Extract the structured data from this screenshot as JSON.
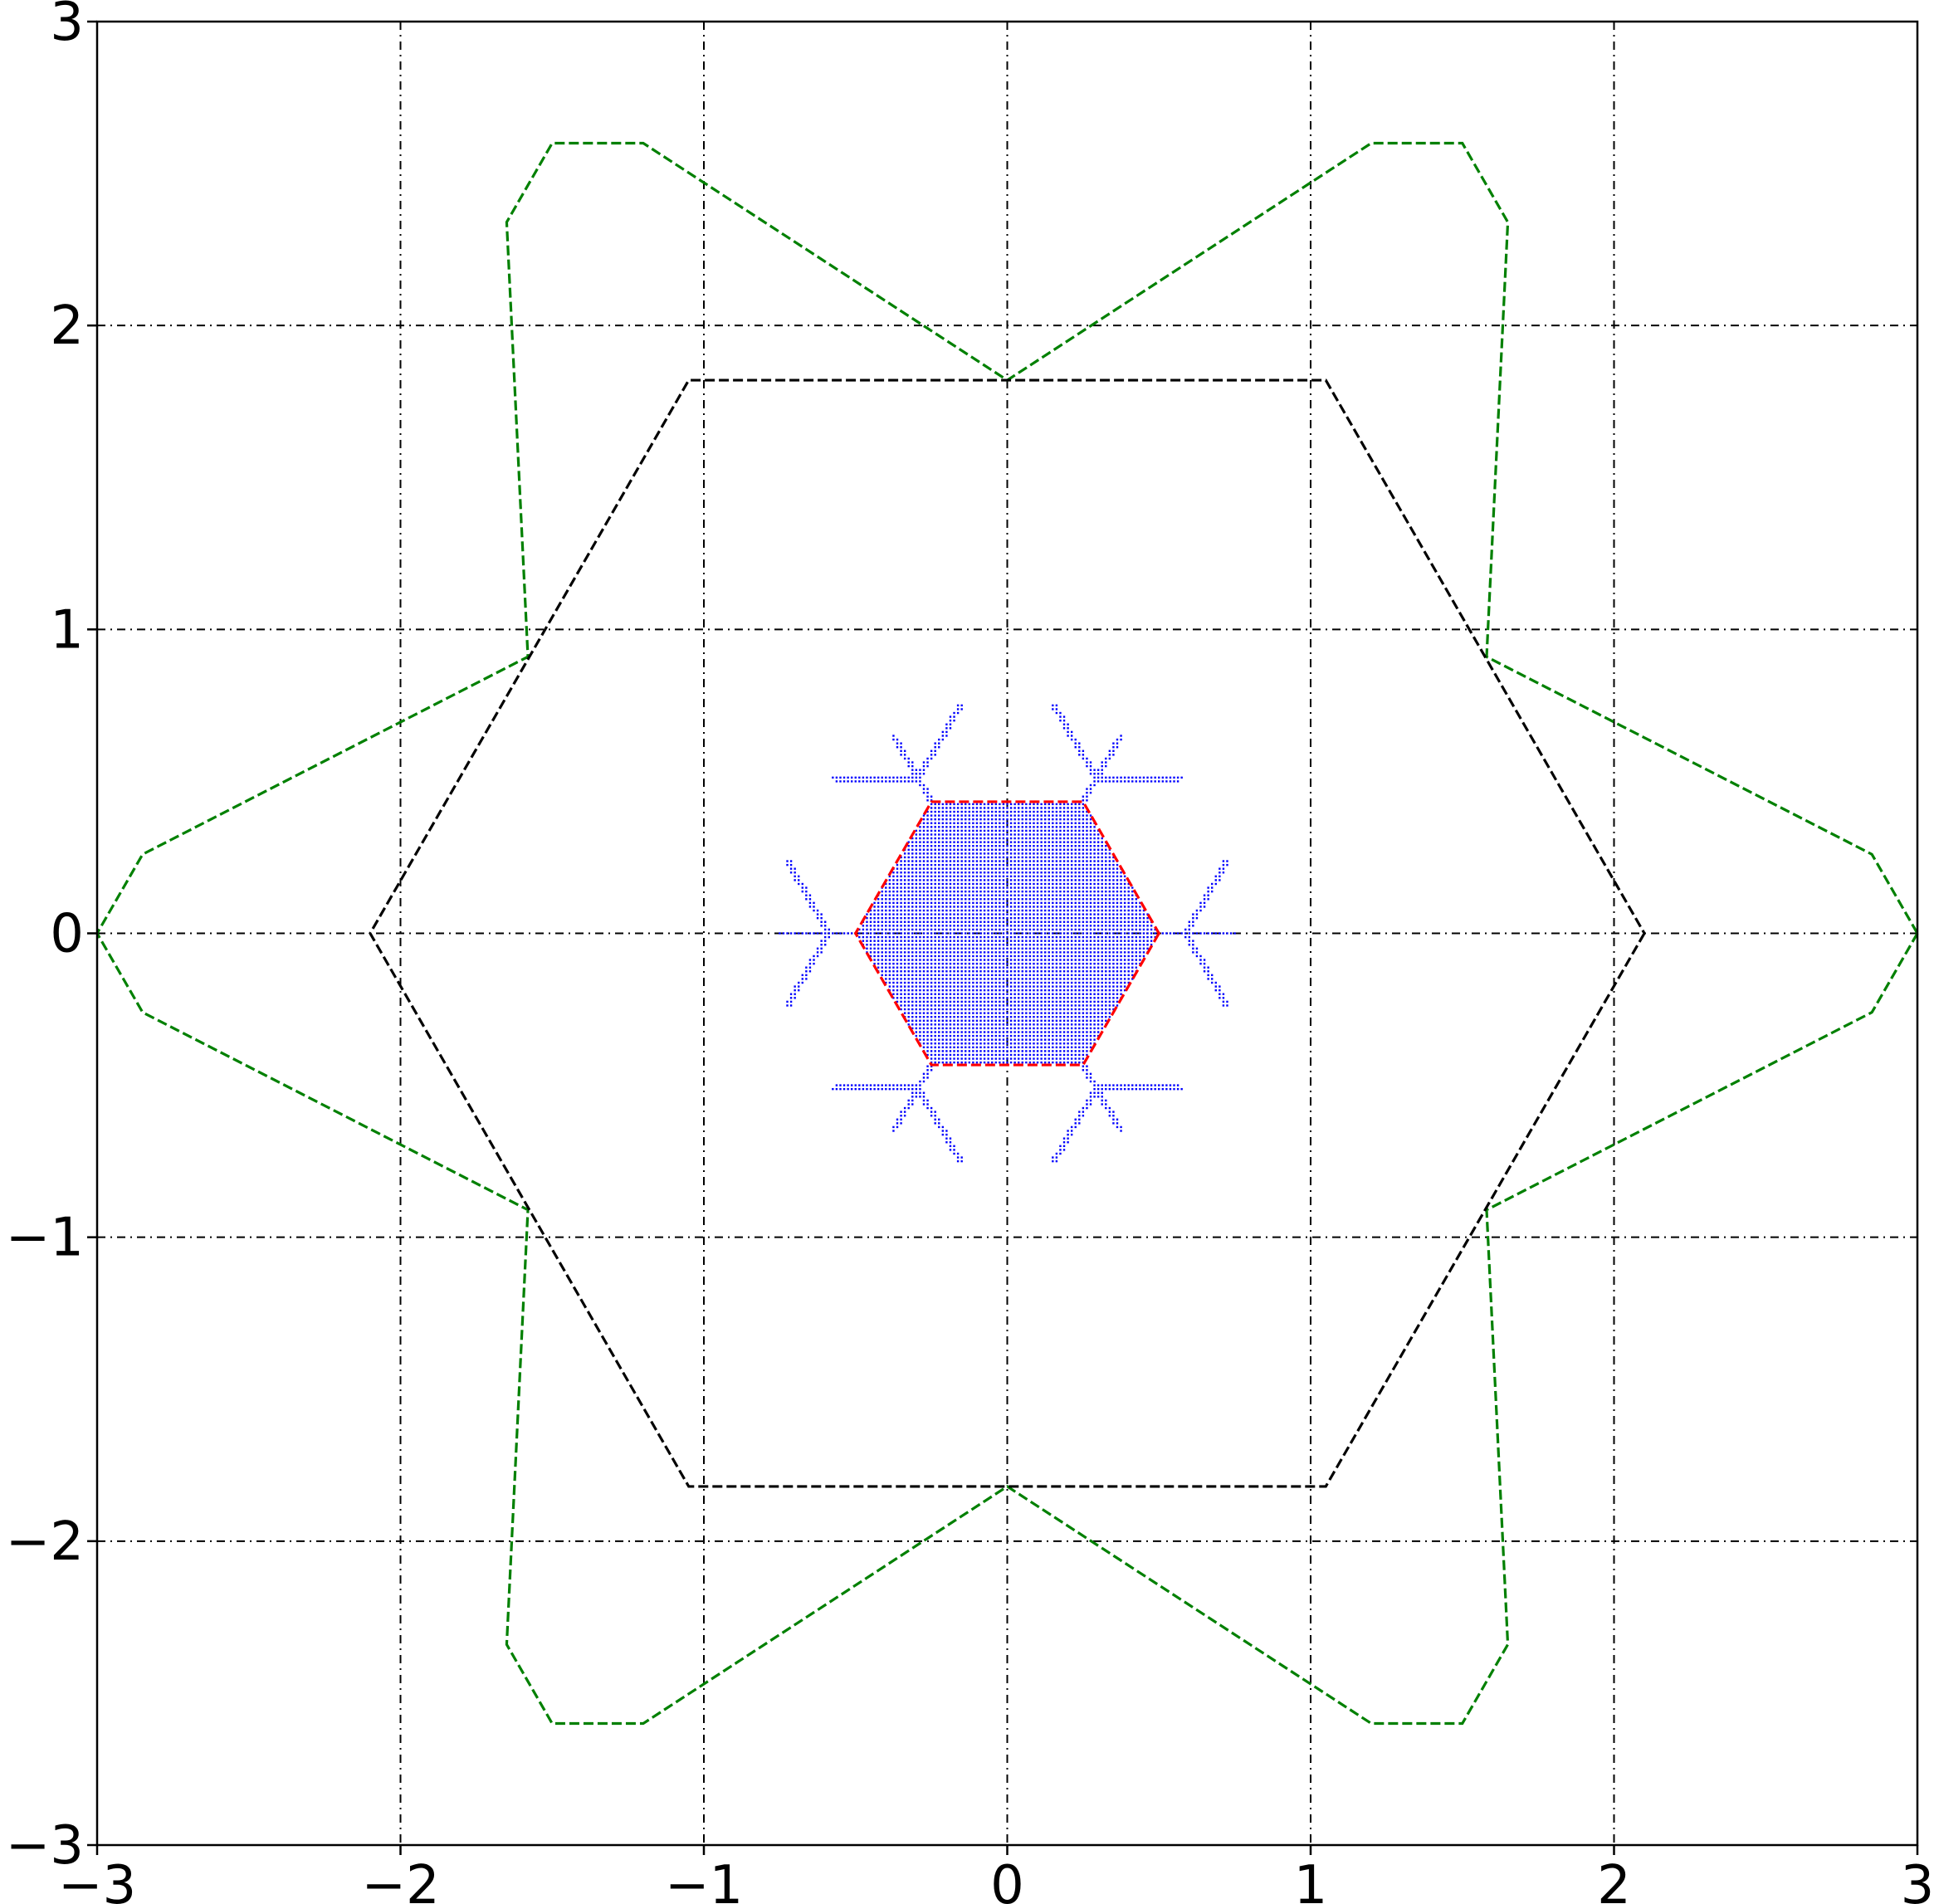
{
  "chart_data": {
    "type": "line",
    "title": "",
    "xlabel": "",
    "ylabel": "",
    "xlim": [
      -3,
      3
    ],
    "ylim": [
      -3,
      3
    ],
    "grid": true,
    "grid_style": "dash-dot",
    "aspect": "equal",
    "x_ticks": [
      -3,
      -2,
      -1,
      0,
      1,
      2,
      3
    ],
    "y_ticks": [
      -3,
      -2,
      -1,
      0,
      1,
      2,
      3
    ],
    "x_tick_labels": [
      "−3",
      "−2",
      "−1",
      "0",
      "1",
      "2",
      "3"
    ],
    "y_tick_labels": [
      "−3",
      "−2",
      "−1",
      "0",
      "1",
      "2",
      "3"
    ],
    "series": [
      {
        "style": "dashed",
        "color": "#008000",
        "closed": true,
        "points": [
          [
            3.0,
            0.0
          ],
          [
            2.85,
            -0.26
          ],
          [
            1.58,
            -0.91
          ],
          [
            1.65,
            -2.34
          ],
          [
            1.5,
            -2.6
          ],
          [
            1.2,
            -2.6
          ],
          [
            0.0,
            -1.82
          ],
          [
            -1.2,
            -2.6
          ],
          [
            -1.5,
            -2.6
          ],
          [
            -1.65,
            -2.34
          ],
          [
            -1.58,
            -0.91
          ],
          [
            -2.85,
            -0.26
          ],
          [
            -3.0,
            0.0
          ],
          [
            -2.85,
            0.26
          ],
          [
            -1.58,
            0.91
          ],
          [
            -1.65,
            2.34
          ],
          [
            -1.5,
            2.6
          ],
          [
            -1.2,
            2.6
          ],
          [
            0.0,
            1.82
          ],
          [
            1.2,
            2.6
          ],
          [
            1.5,
            2.6
          ],
          [
            1.65,
            2.34
          ],
          [
            1.58,
            0.91
          ],
          [
            2.85,
            0.26
          ]
        ]
      },
      {
        "style": "dashed",
        "color": "#000000",
        "closed": true,
        "points": [
          [
            2.1,
            0.0
          ],
          [
            1.05,
            -1.82
          ],
          [
            -1.05,
            -1.82
          ],
          [
            -2.1,
            0.0
          ],
          [
            -1.05,
            1.82
          ],
          [
            1.05,
            1.82
          ]
        ]
      },
      {
        "style": "dotted-fill",
        "color": "#0000ff",
        "hexagon_radius": 0.5,
        "arm_length": 0.25,
        "branch_length": 0.17
      },
      {
        "style": "dashed",
        "color": "#ff0000",
        "closed": true,
        "points": [
          [
            0.5,
            0.0
          ],
          [
            0.25,
            -0.433
          ],
          [
            -0.25,
            -0.433
          ],
          [
            -0.5,
            0.0
          ],
          [
            -0.25,
            0.433
          ],
          [
            0.25,
            0.433
          ]
        ]
      }
    ]
  }
}
